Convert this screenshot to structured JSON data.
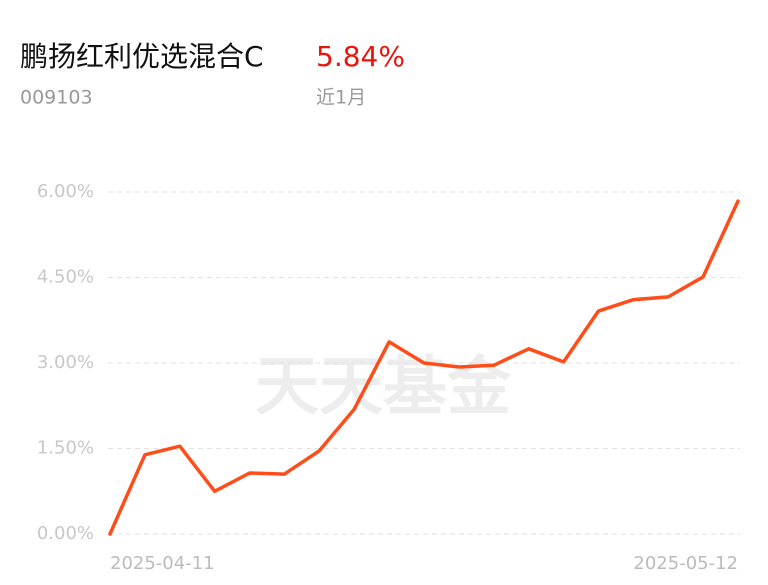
{
  "header": {
    "name": "鹏扬红利优选混合C",
    "return": "5.84%",
    "code": "009103",
    "period": "近1月"
  },
  "watermark": "天天基金",
  "chart_data": {
    "type": "line",
    "categories": [
      "2025-04-11",
      null,
      null,
      null,
      null,
      null,
      null,
      null,
      null,
      null,
      null,
      null,
      null,
      null,
      null,
      null,
      null,
      null,
      "2025-05-12"
    ],
    "values": [
      0,
      1.39,
      1.54,
      0.75,
      1.07,
      1.05,
      1.46,
      2.19,
      3.37,
      3.0,
      2.93,
      2.96,
      3.25,
      3.02,
      3.91,
      4.11,
      4.16,
      4.51,
      5.84
    ],
    "color": "#ff4d1a",
    "ylim": [
      0,
      6
    ],
    "yticks": [
      {
        "value": 0,
        "label": "0.00%"
      },
      {
        "value": 1.5,
        "label": "1.50%"
      },
      {
        "value": 3,
        "label": "3.00%"
      },
      {
        "value": 4.5,
        "label": "4.50%"
      },
      {
        "value": 6,
        "label": "6.00%"
      }
    ],
    "grid": true
  }
}
